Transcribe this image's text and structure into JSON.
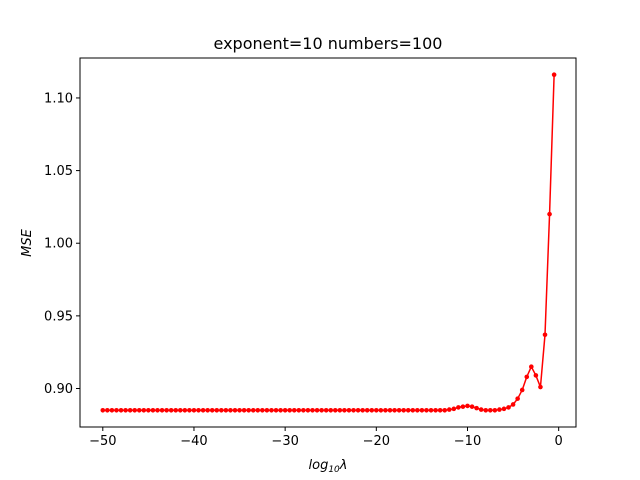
{
  "chart_data": {
    "type": "line",
    "title": "exponent=10 numbers=100",
    "xlabel": "log",
    "xlabel_sub": "10",
    "xlabel_suffix": "λ",
    "ylabel": "MSE",
    "xlim": [
      -52.5,
      1.9
    ],
    "ylim": [
      0.8735,
      1.1275
    ],
    "xticks": [
      -50,
      -40,
      -30,
      -20,
      -10,
      0
    ],
    "xtick_labels": [
      "−50",
      "−40",
      "−30",
      "−20",
      "−10",
      "0"
    ],
    "yticks": [
      0.9,
      0.95,
      1.0,
      1.05,
      1.1
    ],
    "ytick_labels": [
      "0.90",
      "0.95",
      "1.00",
      "1.05",
      "1.10"
    ],
    "grid": false,
    "series": [
      {
        "color": "#ff0000",
        "marker": "circle",
        "x": [
          -50.0,
          -49.5,
          -49.0,
          -48.5,
          -48.0,
          -47.5,
          -47.0,
          -46.5,
          -46.0,
          -45.5,
          -45.0,
          -44.5,
          -44.0,
          -43.5,
          -43.0,
          -42.5,
          -42.0,
          -41.5,
          -41.0,
          -40.5,
          -40.0,
          -39.5,
          -39.0,
          -38.5,
          -38.0,
          -37.5,
          -37.0,
          -36.5,
          -36.0,
          -35.5,
          -35.0,
          -34.5,
          -34.0,
          -33.5,
          -33.0,
          -32.5,
          -32.0,
          -31.5,
          -31.0,
          -30.5,
          -30.0,
          -29.5,
          -29.0,
          -28.5,
          -28.0,
          -27.5,
          -27.0,
          -26.5,
          -26.0,
          -25.5,
          -25.0,
          -24.5,
          -24.0,
          -23.5,
          -23.0,
          -22.5,
          -22.0,
          -21.5,
          -21.0,
          -20.5,
          -20.0,
          -19.5,
          -19.0,
          -18.5,
          -18.0,
          -17.5,
          -17.0,
          -16.5,
          -16.0,
          -15.5,
          -15.0,
          -14.5,
          -14.0,
          -13.5,
          -13.0,
          -12.5,
          -12.0,
          -11.5,
          -11.0,
          -10.5,
          -10.0,
          -9.5,
          -9.0,
          -8.5,
          -8.0,
          -7.5,
          -7.0,
          -6.5,
          -6.0,
          -5.5,
          -5.0,
          -4.5,
          -4.0,
          -3.5,
          -3.0,
          -2.5,
          -2.0,
          -1.5,
          -1.0,
          -0.5
        ],
        "y": [
          0.885,
          0.885,
          0.885,
          0.885,
          0.885,
          0.885,
          0.885,
          0.885,
          0.885,
          0.885,
          0.885,
          0.885,
          0.885,
          0.885,
          0.885,
          0.885,
          0.885,
          0.885,
          0.885,
          0.885,
          0.885,
          0.885,
          0.885,
          0.885,
          0.885,
          0.885,
          0.885,
          0.885,
          0.885,
          0.885,
          0.885,
          0.885,
          0.885,
          0.885,
          0.885,
          0.885,
          0.885,
          0.885,
          0.885,
          0.885,
          0.885,
          0.885,
          0.885,
          0.885,
          0.885,
          0.885,
          0.885,
          0.885,
          0.885,
          0.885,
          0.885,
          0.885,
          0.885,
          0.885,
          0.885,
          0.885,
          0.885,
          0.885,
          0.885,
          0.885,
          0.885,
          0.885,
          0.885,
          0.885,
          0.885,
          0.885,
          0.885,
          0.885,
          0.885,
          0.885,
          0.885,
          0.885,
          0.885,
          0.885,
          0.885,
          0.885,
          0.8855,
          0.886,
          0.887,
          0.8875,
          0.888,
          0.8875,
          0.8865,
          0.8855,
          0.885,
          0.885,
          0.885,
          0.8855,
          0.886,
          0.887,
          0.889,
          0.893,
          0.899,
          0.908,
          0.915,
          0.909,
          0.901,
          0.937,
          1.02,
          1.116
        ]
      }
    ]
  }
}
